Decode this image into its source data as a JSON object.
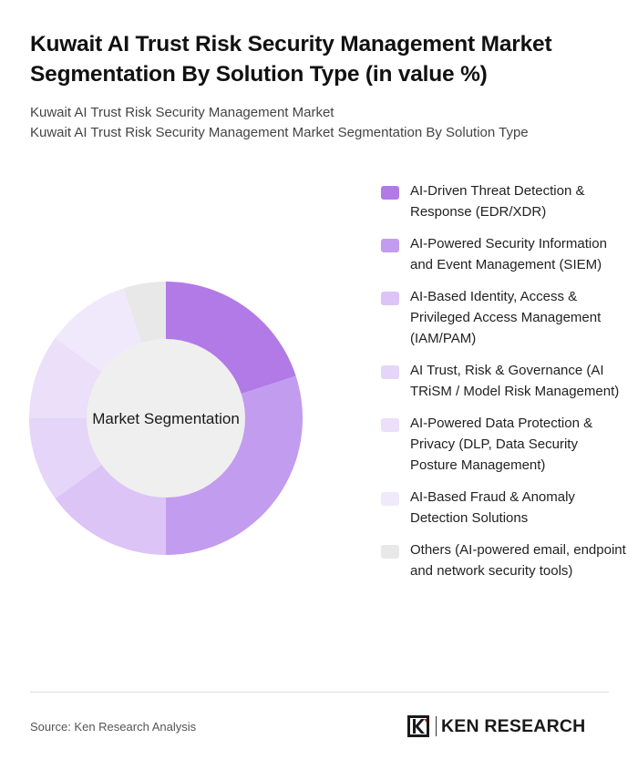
{
  "header": {
    "title": "Kuwait AI Trust Risk Security Management Market Segmentation By Solution Type (in value %)",
    "subtitle_line1": "Kuwait AI Trust Risk Security Management Market",
    "subtitle_line2": "Kuwait AI Trust Risk Security Management Market Segmentation By Solution Type"
  },
  "chart_data": {
    "type": "pie",
    "variant": "donut",
    "center_label": "Market Segmentation",
    "legend_position": "right",
    "series": [
      {
        "name": "AI-Driven Threat Detection & Response (EDR/XDR)",
        "value": 20,
        "color": "#b27ae6"
      },
      {
        "name": "AI-Powered Security Information and Event Management (SIEM)",
        "value": 30,
        "color": "#c29cef"
      },
      {
        "name": "AI-Based Identity, Access & Privileged Access Management (IAM/PAM)",
        "value": 15,
        "color": "#dcc4f6"
      },
      {
        "name": "AI Trust, Risk & Governance (AI TRiSM / Model Risk Management)",
        "value": 10,
        "color": "#e5d5f8"
      },
      {
        "name": "AI-Powered Data Protection & Privacy (DLP, Data Security Posture Management)",
        "value": 10,
        "color": "#ebdff9"
      },
      {
        "name": "AI-Based Fraud & Anomaly Detection Solutions",
        "value": 10,
        "color": "#f0e9fb"
      },
      {
        "name": "Others (AI-powered email, endpoint and network security tools)",
        "value": 5,
        "color": "#e8e8e8"
      }
    ],
    "center_color": "#efefef"
  },
  "footer": {
    "source": "Source: Ken Research Analysis",
    "brand": "KEN RESEARCH",
    "logo_letter": "K"
  }
}
